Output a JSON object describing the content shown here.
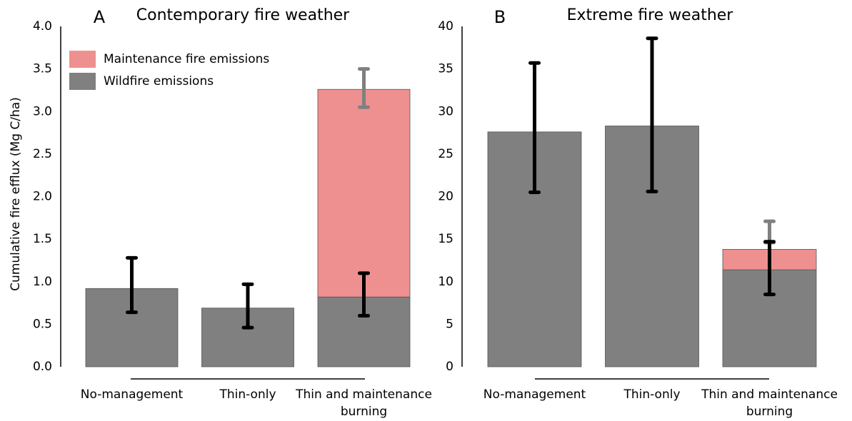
{
  "chart_data": [
    {
      "type": "bar",
      "stacked": true,
      "panel_label": "A",
      "title": "Contemporary fire weather",
      "ylabel": "Cumulative fire efflux (Mg C/ha)",
      "categories": [
        "No-management",
        "Thin-only",
        "Thin and maintenance burning"
      ],
      "ylim": [
        0,
        4.0
      ],
      "yticks": [
        {
          "value": 0,
          "label": "0.0"
        },
        0.5,
        {
          "value": 1,
          "label": "1.0"
        },
        1.5,
        {
          "value": 2,
          "label": "2.0"
        },
        2.5,
        {
          "value": 3,
          "label": "3.0"
        },
        3.5,
        {
          "value": 4,
          "label": "4.0"
        }
      ],
      "legend": true,
      "series": [
        {
          "name": "Wildfire emissions",
          "color": "#808080",
          "error_color": "#000000",
          "values": [
            0.92,
            0.69,
            0.82
          ],
          "error_low": [
            0.64,
            0.46,
            0.6
          ],
          "error_high": [
            1.28,
            0.97,
            1.1
          ]
        },
        {
          "name": "Maintenance fire emissions",
          "color": "#ef9090",
          "error_color": "#808080",
          "values": [
            null,
            null,
            2.44
          ],
          "error_low": [
            null,
            null,
            3.05
          ],
          "error_high": [
            null,
            null,
            3.5
          ]
        }
      ]
    },
    {
      "type": "bar",
      "stacked": true,
      "panel_label": "B",
      "title": "Extreme fire weather",
      "categories": [
        "No-management",
        "Thin-only",
        "Thin and maintenance burning"
      ],
      "ylim": [
        0,
        40
      ],
      "yticks": [
        0,
        5,
        10,
        15,
        20,
        25,
        30,
        35,
        40
      ],
      "legend": false,
      "series": [
        {
          "color": "#808080",
          "error_color": "#000000",
          "values": [
            27.6,
            28.3,
            11.4
          ],
          "error_low": [
            20.5,
            20.6,
            8.5
          ],
          "error_high": [
            35.7,
            38.6,
            14.7
          ]
        },
        {
          "color": "#ef9090",
          "error_color": "#808080",
          "values": [
            null,
            null,
            2.4
          ],
          "error_low": [
            null,
            null,
            14.6
          ],
          "error_high": [
            null,
            null,
            17.1
          ]
        }
      ]
    }
  ]
}
